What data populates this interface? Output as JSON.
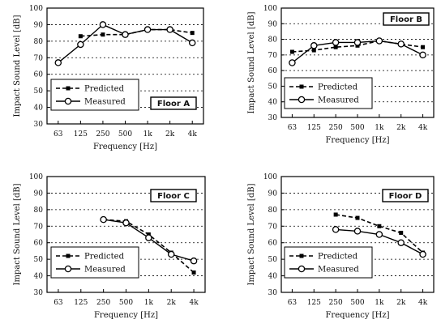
{
  "chart_data": [
    {
      "type": "line",
      "panel": "Floor A",
      "categories": [
        "63",
        "125",
        "250",
        "500",
        "1k",
        "2k",
        "4k"
      ],
      "xlabel": "Frequency [Hz]",
      "ylabel": "Impact Sound Level [dB]",
      "ylim": [
        30,
        100
      ],
      "yticks": [
        "30",
        "40",
        "50",
        "60",
        "70",
        "80",
        "90",
        "100"
      ],
      "grid": true,
      "legend_position": "bottom-left",
      "floor_label": "Floor A",
      "floor_label_position": "bottom-right",
      "series": [
        {
          "name": "Predicted",
          "style": "dashed-square",
          "values": [
            null,
            83,
            84,
            84,
            87,
            87,
            85
          ]
        },
        {
          "name": "Measured",
          "style": "solid-circle",
          "values": [
            67,
            78,
            90,
            84,
            87,
            87,
            79
          ]
        }
      ]
    },
    {
      "type": "line",
      "panel": "Floor B",
      "categories": [
        "63",
        "125",
        "250",
        "500",
        "1k",
        "2k",
        "4k"
      ],
      "xlabel": "Frequency [Hz]",
      "ylabel": "Impact Sound Level [dB]",
      "ylim": [
        30,
        100
      ],
      "yticks": [
        "30",
        "40",
        "50",
        "60",
        "70",
        "80",
        "90",
        "100"
      ],
      "grid": true,
      "legend_position": "bottom-left",
      "floor_label": "Floor B",
      "floor_label_position": "top-right",
      "series": [
        {
          "name": "Predicted",
          "style": "dashed-square",
          "values": [
            72,
            73,
            75,
            76,
            79,
            77,
            75
          ]
        },
        {
          "name": "Measured",
          "style": "solid-circle",
          "values": [
            65,
            76,
            78,
            78,
            79,
            77,
            70
          ]
        }
      ]
    },
    {
      "type": "line",
      "panel": "Floor C",
      "categories": [
        "63",
        "125",
        "250",
        "500",
        "1k",
        "2k",
        "4k"
      ],
      "xlabel": "Frequency [Hz]",
      "ylabel": "Impact Sound Level [dB]",
      "ylim": [
        30,
        100
      ],
      "yticks": [
        "30",
        "40",
        "50",
        "60",
        "70",
        "80",
        "90",
        "100"
      ],
      "grid": true,
      "legend_position": "bottom-left",
      "floor_label": "Floor C",
      "floor_label_position": "top-right",
      "series": [
        {
          "name": "Predicted",
          "style": "dashed-square",
          "values": [
            null,
            null,
            74,
            73,
            65,
            54,
            42
          ]
        },
        {
          "name": "Measured",
          "style": "solid-circle",
          "values": [
            null,
            null,
            74,
            72,
            63,
            53,
            49
          ]
        }
      ]
    },
    {
      "type": "line",
      "panel": "Floor D",
      "categories": [
        "63",
        "125",
        "250",
        "500",
        "1k",
        "2k",
        "4k"
      ],
      "xlabel": "Frequency [Hz]",
      "ylabel": "Impact Sound Level [dB]",
      "ylim": [
        30,
        100
      ],
      "yticks": [
        "30",
        "40",
        "50",
        "60",
        "70",
        "80",
        "90",
        "100"
      ],
      "grid": true,
      "legend_position": "bottom-left",
      "floor_label": "Floor D",
      "floor_label_position": "top-right",
      "series": [
        {
          "name": "Predicted",
          "style": "dashed-square",
          "values": [
            null,
            null,
            77,
            75,
            70,
            66,
            54
          ]
        },
        {
          "name": "Measured",
          "style": "solid-circle",
          "values": [
            null,
            null,
            68,
            67,
            65,
            60,
            53
          ]
        }
      ]
    }
  ]
}
